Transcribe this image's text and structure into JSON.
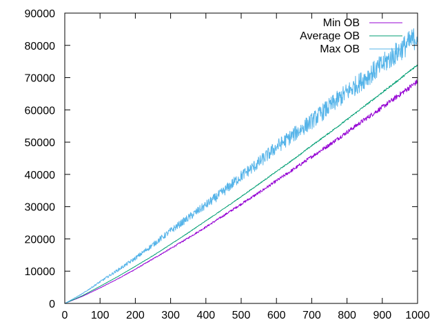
{
  "chart_data": {
    "type": "line",
    "title": "",
    "xlabel": "",
    "ylabel": "",
    "xlim": [
      0,
      1000
    ],
    "ylim": [
      0,
      90000
    ],
    "x_ticks": [
      0,
      100,
      200,
      300,
      400,
      500,
      600,
      700,
      800,
      900,
      1000
    ],
    "y_ticks": [
      0,
      10000,
      20000,
      30000,
      40000,
      50000,
      60000,
      70000,
      80000,
      90000
    ],
    "grid": false,
    "legend_position": "top-right",
    "x": [
      0,
      50,
      100,
      150,
      200,
      250,
      300,
      350,
      400,
      450,
      500,
      550,
      600,
      650,
      700,
      750,
      800,
      850,
      900,
      950,
      1000
    ],
    "series": [
      {
        "name": "Min OB",
        "color": "#9400d3",
        "values": [
          0,
          2200,
          4800,
          7600,
          10600,
          13800,
          17000,
          20300,
          23700,
          27200,
          30800,
          34300,
          38000,
          41700,
          45500,
          49200,
          53100,
          57000,
          60800,
          64800,
          68800
        ]
      },
      {
        "name": "Average OB",
        "color": "#009e73",
        "values": [
          0,
          2400,
          5300,
          8300,
          11500,
          14800,
          18300,
          21900,
          25600,
          29300,
          33100,
          37000,
          40900,
          44800,
          48900,
          52900,
          57000,
          61200,
          65400,
          69600,
          74000
        ]
      },
      {
        "name": "Max OB",
        "color": "#56b4e9",
        "values": [
          0,
          3000,
          6700,
          10300,
          14000,
          18200,
          22500,
          26500,
          30500,
          34700,
          39500,
          43600,
          48500,
          52400,
          56500,
          61000,
          65500,
          69700,
          74000,
          78500,
          83000
        ]
      }
    ]
  }
}
